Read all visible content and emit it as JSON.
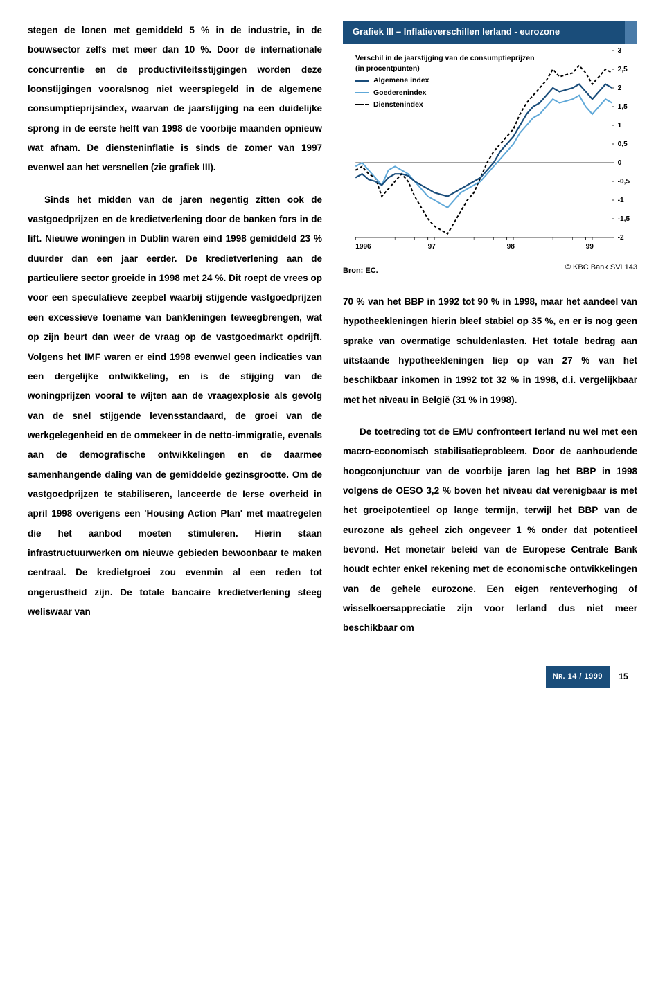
{
  "left": {
    "p1a": "stegen de lonen met gemiddeld 5 % in de industrie, in de bouwsector zelfs met meer dan 10 %. Door de internationale concurrentie en de productiviteitsstijgingen worden deze loonstijgingen vooralsnog niet weerspiegeld in de algemene consumptieprijsindex, waarvan de jaarstijging na een duidelijke sprong in de eerste helft van 1998 de voorbije maanden opnieuw wat afnam. De diensteninflatie is sinds de zomer van 1997 evenwel aan het versnellen (zie grafiek III).",
    "p2": "Sinds het midden van de jaren negentig zitten ook de vastgoedprijzen en de kredietverlening door de banken fors in de lift. Nieuwe woningen in Dublin waren eind 1998 gemiddeld 23 % duurder dan een jaar eerder. De kredietverlening aan de particuliere sector groeide in 1998 met 24 %. Dit roept de vrees op voor een speculatieve zeepbel waarbij stijgende vastgoedprijzen een excessieve toename van bankleningen teweegbrengen, wat op zijn beurt dan weer de vraag op de vastgoedmarkt opdrijft. Volgens het IMF waren er eind 1998 evenwel geen indicaties van een dergelijke ontwikkeling, en is de stijging van de woningprijzen vooral te wijten aan de vraagexplosie als gevolg van de snel stijgende levensstandaard, de groei van de werkgelegenheid en de ommekeer in de netto-immigratie, evenals aan de demografische ontwikkelingen en de daarmee samenhangende daling van de gemiddelde gezinsgrootte. Om de vastgoedprijzen te stabiliseren, lanceerde de Ierse overheid in april 1998 overigens een 'Housing Action Plan' met maatregelen die het aanbod moeten stimuleren. Hierin staan infrastructuurwerken om nieuwe gebieden bewoonbaar te maken centraal. De kredietgroei zou evenmin al een reden tot ongerustheid zijn. De totale bancaire kredietverlening steeg weliswaar van"
  },
  "chart": {
    "title": "Grafiek III – Inflatieverschillen Ierland - eurozone",
    "subtitle1": "Verschil in de jaarstijging van de consumptieprijzen",
    "subtitle2": "(in procentpunten)",
    "legend": {
      "a": "Algemene index",
      "b": "Goederenindex",
      "c": "Dienstenindex"
    },
    "xlabels": [
      "1996",
      "97",
      "98",
      "99"
    ],
    "ylabels": [
      "3",
      "2,5",
      "2",
      "1,5",
      "1",
      "0,5",
      "0",
      "-0,5",
      "-1",
      "-1,5",
      "-2"
    ],
    "source": "Bron: EC.",
    "credit": "© KBC Bank SVL143",
    "colors": {
      "header_bg": "#1a4d7a",
      "header_accent": "#4a7ba8",
      "line_dark": "#1a4d7a",
      "line_light": "#5fa8d8",
      "line_dash": "#000000",
      "axis": "#000000"
    },
    "series": {
      "algemene": [
        -0.4,
        -0.3,
        -0.45,
        -0.5,
        -0.6,
        -0.4,
        -0.3,
        -0.3,
        -0.35,
        -0.5,
        -0.6,
        -0.7,
        -0.8,
        -0.85,
        -0.9,
        -0.8,
        -0.7,
        -0.6,
        -0.5,
        -0.4,
        -0.2,
        0,
        0.3,
        0.5,
        0.7,
        1.0,
        1.3,
        1.5,
        1.6,
        1.8,
        2.0,
        1.9,
        1.95,
        2.0,
        2.1,
        1.9,
        1.7,
        1.9,
        2.1,
        2.0
      ],
      "goederen": [
        -0.1,
        0,
        -0.2,
        -0.4,
        -0.6,
        -0.2,
        -0.1,
        -0.2,
        -0.3,
        -0.5,
        -0.7,
        -0.9,
        -1.0,
        -1.1,
        -1.2,
        -1.0,
        -0.8,
        -0.7,
        -0.6,
        -0.5,
        -0.3,
        -0.1,
        0.1,
        0.3,
        0.5,
        0.8,
        1.0,
        1.2,
        1.3,
        1.5,
        1.7,
        1.6,
        1.65,
        1.7,
        1.8,
        1.5,
        1.3,
        1.5,
        1.7,
        1.6
      ],
      "diensten": [
        -0.2,
        -0.1,
        -0.3,
        -0.4,
        -0.9,
        -0.7,
        -0.5,
        -0.3,
        -0.5,
        -0.9,
        -1.2,
        -1.5,
        -1.7,
        -1.8,
        -1.9,
        -1.6,
        -1.3,
        -1.0,
        -0.8,
        -0.4,
        0,
        0.3,
        0.5,
        0.7,
        0.9,
        1.3,
        1.6,
        1.8,
        2.0,
        2.2,
        2.5,
        2.3,
        2.35,
        2.4,
        2.6,
        2.4,
        2.1,
        2.3,
        2.5,
        2.4
      ]
    }
  },
  "right": {
    "p1": "70 % van het BBP in 1992 tot 90 % in 1998, maar het aandeel van hypotheekleningen hierin bleef stabiel op 35 %, en er is nog geen sprake van overmatige schuldenlasten. Het totale bedrag aan uitstaande hypotheekleningen liep op van 27 % van het beschikbaar inkomen in 1992 tot 32 % in 1998, d.i. vergelijkbaar met het niveau in België (31 % in 1998).",
    "p2": "De toetreding tot de EMU confronteert Ierland nu wel met een macro-economisch stabilisatieprobleem. Door de aanhoudende hoogconjunctuur van de voorbije jaren lag het BBP in 1998 volgens de OESO 3,2 % boven het niveau dat verenigbaar is met het groeipotentieel op lange termijn, terwijl het BBP van de eurozone als geheel zich ongeveer 1 % onder dat potentieel bevond. Het monetair beleid van de Europese Centrale Bank houdt echter enkel rekening met de economische ontwikkelingen van de gehele eurozone. Een eigen renteverhoging of wisselkoersappreciatie zijn voor Ierland dus niet meer beschikbaar om"
  },
  "footer": {
    "issue": "Nr. 14 / 1999",
    "page": "15"
  }
}
